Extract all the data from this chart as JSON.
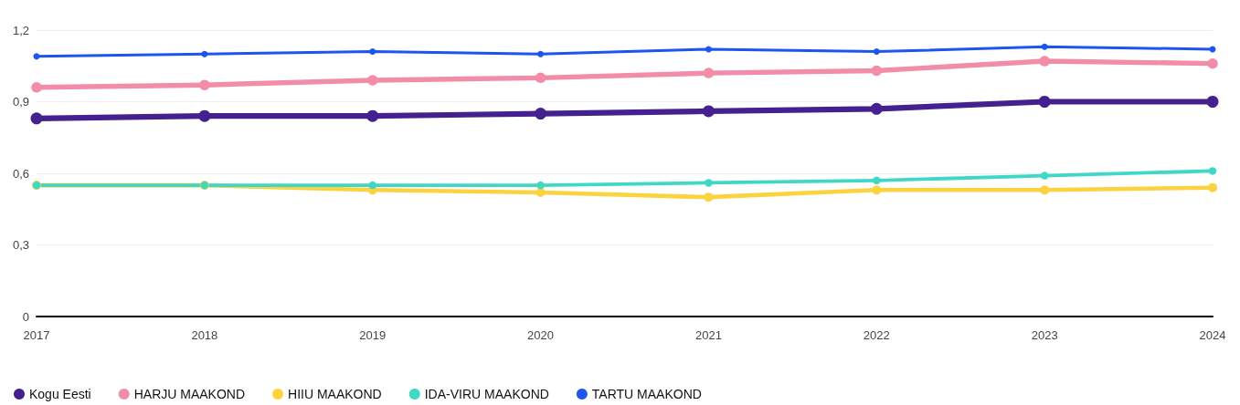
{
  "chart_data": {
    "type": "line",
    "categories": [
      "2017",
      "2018",
      "2019",
      "2020",
      "2021",
      "2022",
      "2023",
      "2024"
    ],
    "series": [
      {
        "name": "Kogu Eesti",
        "color": "#45218f",
        "values": [
          0.83,
          0.84,
          0.84,
          0.85,
          0.86,
          0.87,
          0.9,
          0.9
        ]
      },
      {
        "name": "HARJU MAAKOND",
        "color": "#f28ca8",
        "values": [
          0.96,
          0.97,
          0.99,
          1.0,
          1.02,
          1.03,
          1.07,
          1.06
        ]
      },
      {
        "name": "HIIU MAAKOND",
        "color": "#fcd23f",
        "values": [
          0.55,
          0.55,
          0.53,
          0.52,
          0.5,
          0.53,
          0.53,
          0.54
        ]
      },
      {
        "name": "IDA-VIRU MAAKOND",
        "color": "#3fd8c6",
        "values": [
          0.55,
          0.55,
          0.55,
          0.55,
          0.56,
          0.57,
          0.59,
          0.61
        ]
      },
      {
        "name": "TARTU MAAKOND",
        "color": "#1c55ef",
        "values": [
          1.09,
          1.1,
          1.11,
          1.1,
          1.12,
          1.11,
          1.13,
          1.12
        ]
      }
    ],
    "ylim": [
      0,
      1.2
    ],
    "yticks": [
      0,
      {
        "value": 0.3,
        "label": "0,3"
      },
      {
        "value": 0.6,
        "label": "0,6"
      },
      {
        "value": 0.9,
        "label": "0,9"
      },
      {
        "value": 1.2,
        "label": "1,2"
      }
    ],
    "grid": "y",
    "legend": "bottom left",
    "marker": "circle",
    "line_style": "solid"
  }
}
